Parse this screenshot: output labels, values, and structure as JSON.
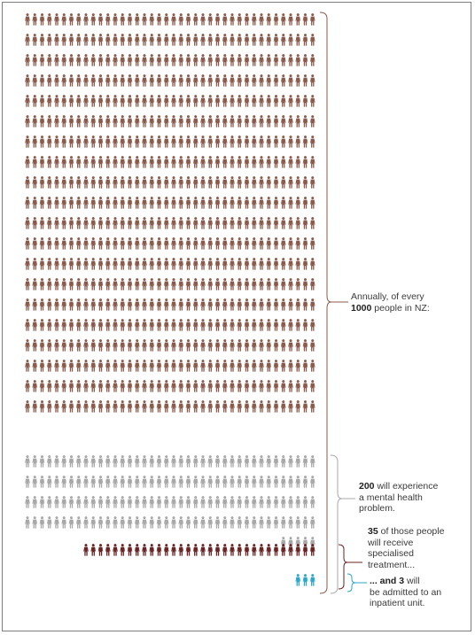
{
  "figure": {
    "total_people": 1000,
    "groups": [
      {
        "id": "general",
        "count": 800,
        "color": "#8b5a4a"
      },
      {
        "id": "mental_health",
        "count": 165,
        "color": "#a8a8a8"
      },
      {
        "id": "specialised",
        "count": 32,
        "color": "#6b2222"
      },
      {
        "id": "inpatient",
        "count": 3,
        "color": "#2aa7c9"
      }
    ]
  },
  "annotations": {
    "all": {
      "pre": "Annually, of every",
      "num": "1000",
      "post": "people in NZ:"
    },
    "mental": {
      "num": "200",
      "post": "will experience",
      "line2": "a mental health",
      "line3": "problem."
    },
    "specialised": {
      "num": "35",
      "post": "of those people",
      "line2": "will receive",
      "line3": "specialised",
      "line4": "treatment..."
    },
    "inpatient": {
      "num": "... and 3",
      "post": "will",
      "line2": "be admitted to an",
      "line3": "inpatient unit."
    }
  }
}
